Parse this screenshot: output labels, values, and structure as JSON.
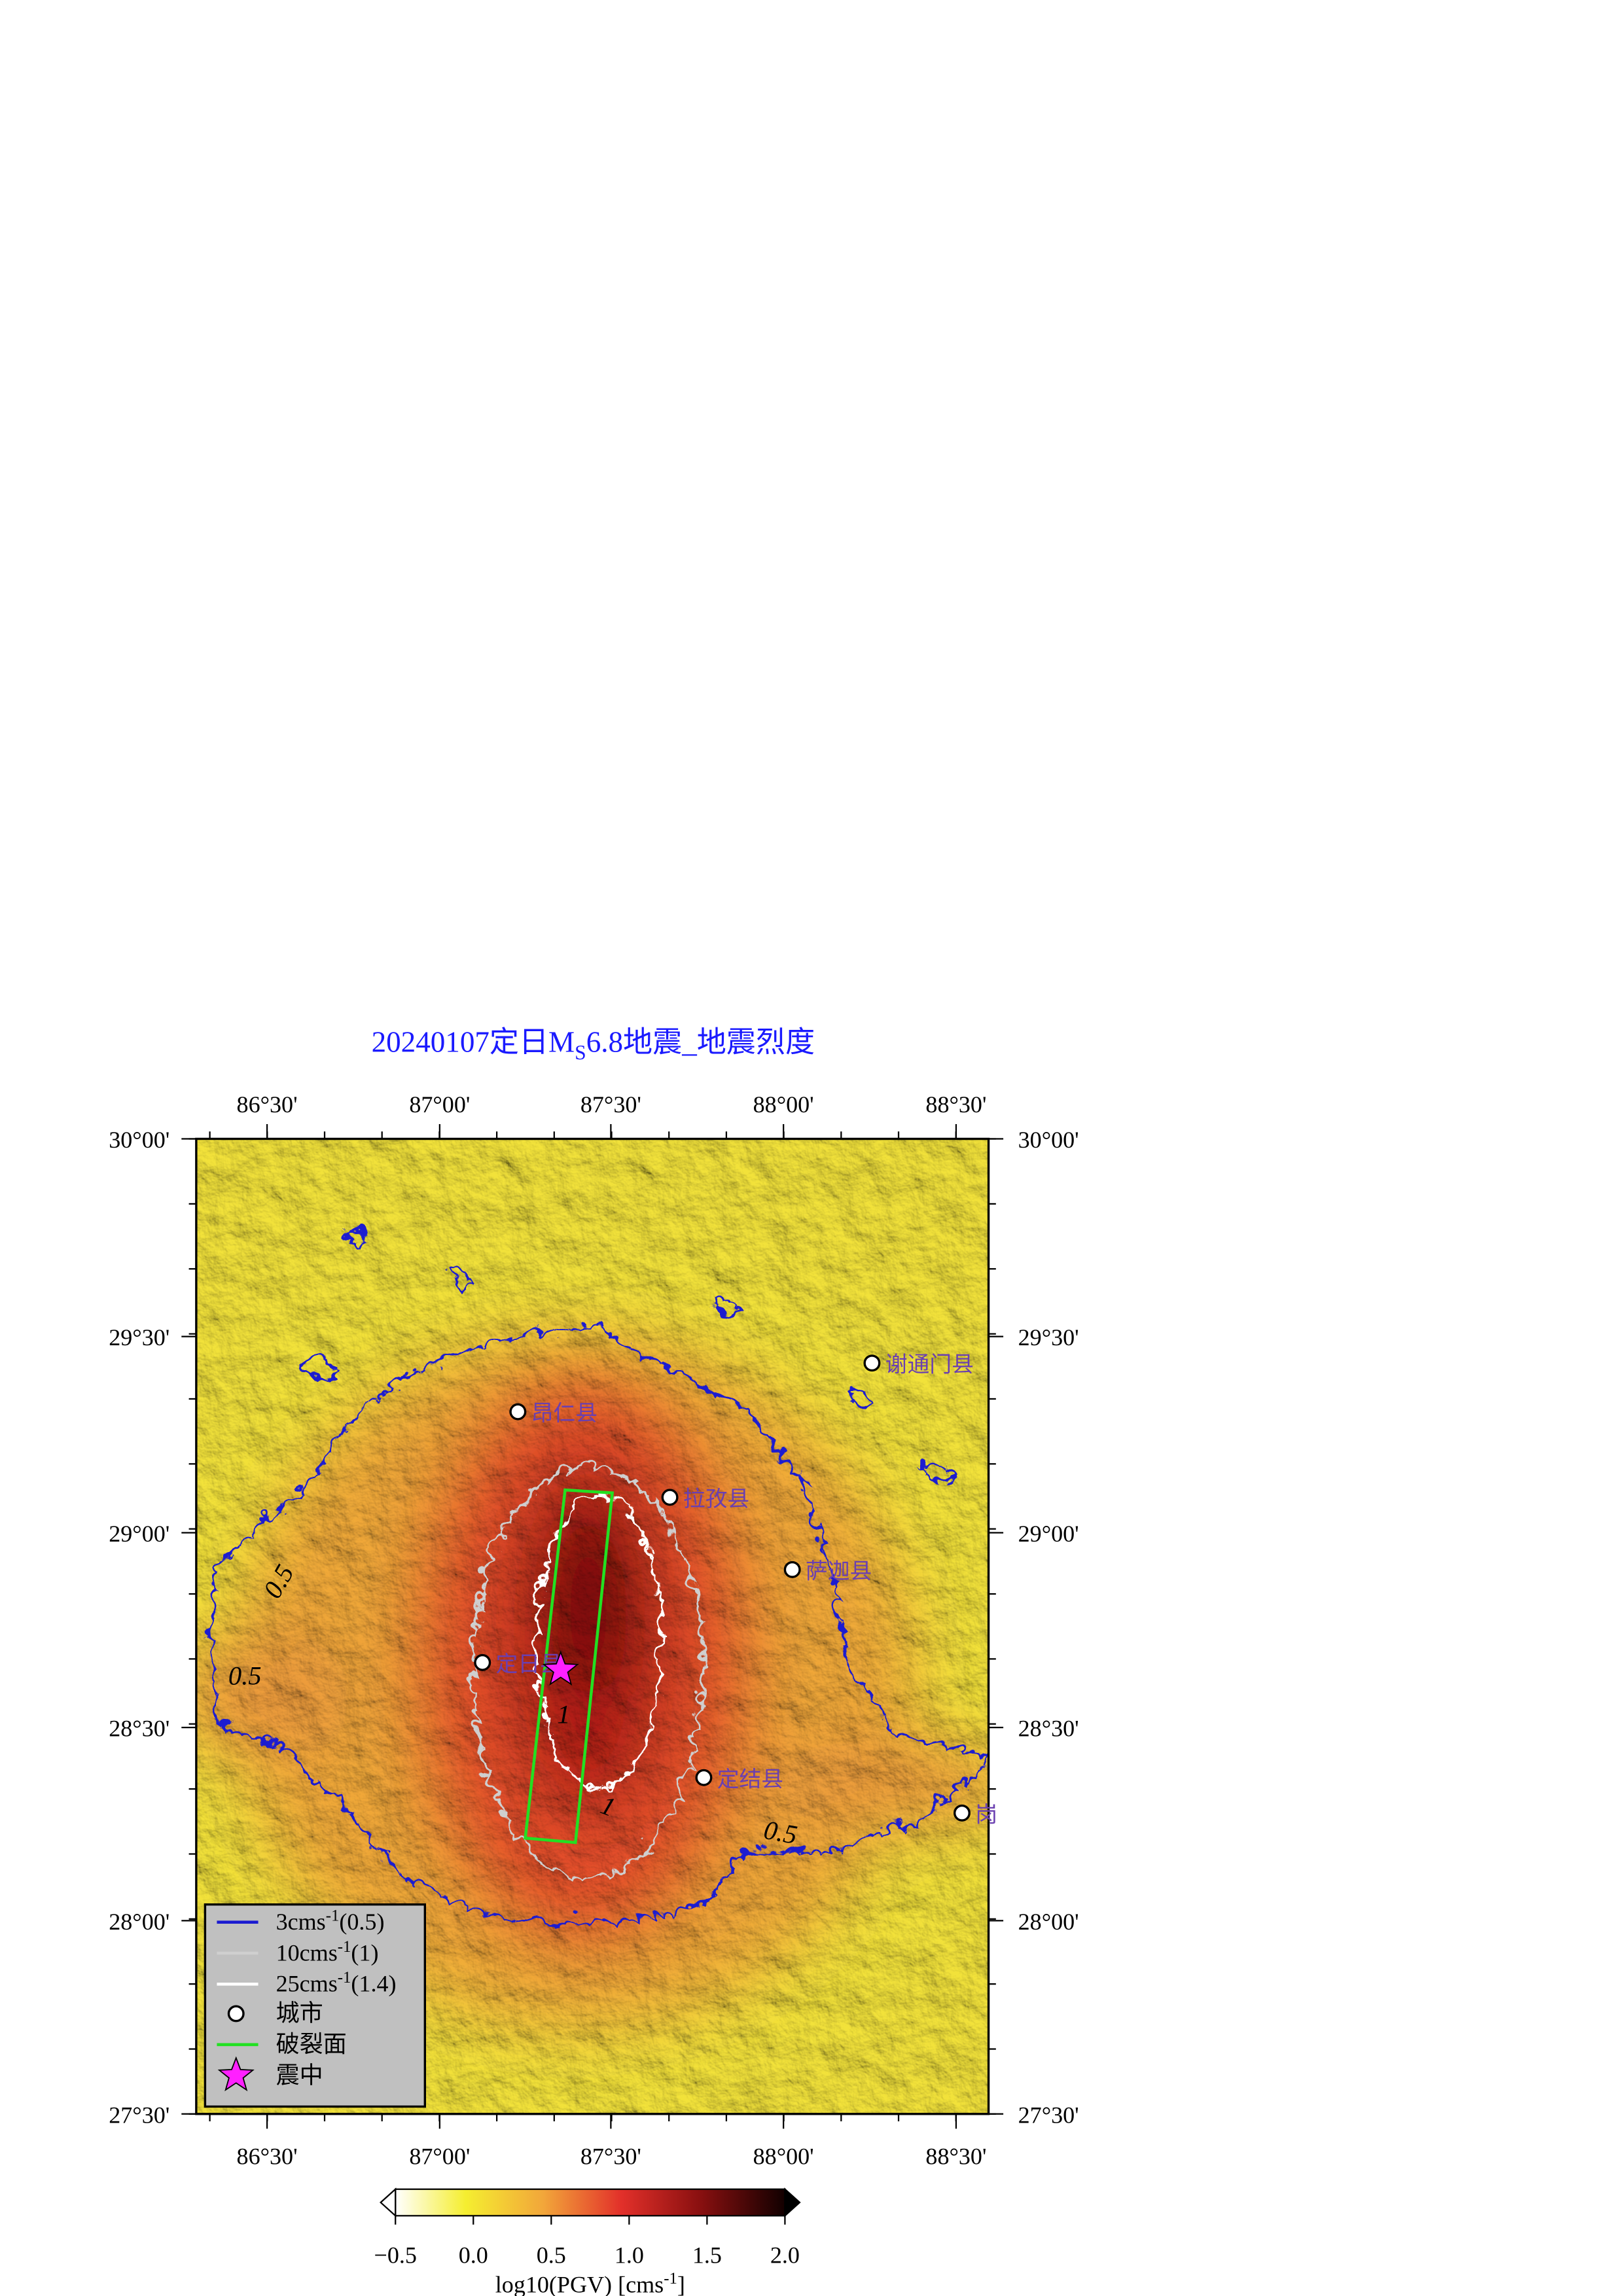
{
  "title": {
    "prefix": "20240107定日M",
    "subscript": "S",
    "suffix": "6.8地震_地震烈度"
  },
  "map": {
    "lon_labels": [
      "86°30'",
      "87°00'",
      "87°30'",
      "88°00'",
      "88°30'"
    ],
    "lat_labels": [
      "30°00'",
      "29°30'",
      "29°00'",
      "28°30'",
      "28°00'",
      "27°30'"
    ],
    "cities": [
      "谢通门县",
      "昂仁县",
      "拉孜县",
      "萨迦县",
      "定日县",
      "定结县",
      "岗"
    ],
    "contour_labels": [
      "0.5",
      "0.5",
      "0.5",
      "1",
      "1"
    ]
  },
  "legend": [
    {
      "text": "3cms",
      "sup": "-1",
      "suffix": "(0.5)"
    },
    {
      "text": "10cms",
      "sup": "-1",
      "suffix": "(1)"
    },
    {
      "text": "25cms",
      "sup": "-1",
      "suffix": "(1.4)"
    },
    {
      "text": "城市"
    },
    {
      "text": "破裂面"
    },
    {
      "text": "震中"
    }
  ],
  "colorbar": {
    "clim": [
      -0.5,
      2.0
    ],
    "ticks": [
      {
        "value": -0.5,
        "label": "−0.5"
      },
      {
        "value": 0,
        "label": "0.0"
      },
      0.5,
      {
        "value": 1,
        "label": "1.0"
      },
      1.5,
      {
        "value": 2,
        "label": "2.0"
      }
    ],
    "label": "log10(PGV) [cms",
    "label_sup": "-1",
    "label_suffix": "]"
  }
}
